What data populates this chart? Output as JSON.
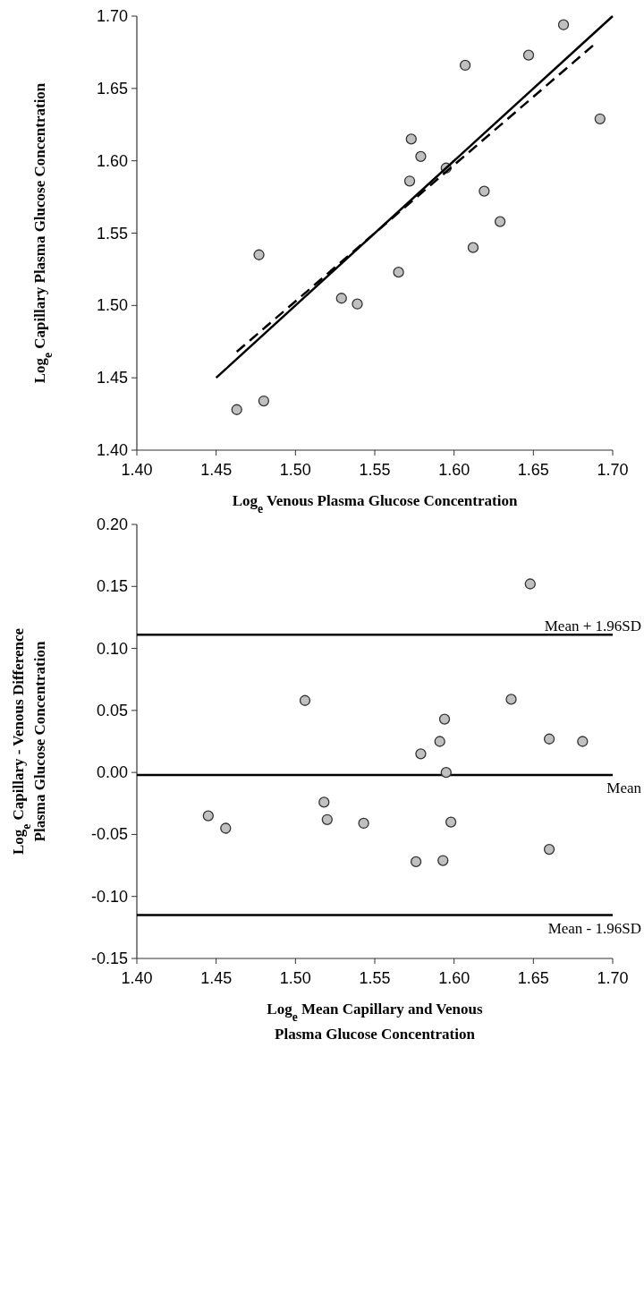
{
  "chart_data": [
    {
      "type": "scatter",
      "xlabel": "Log$_{e}$ Venous Plasma Glucose Concentration",
      "ylabel": "Log$_{e}$ Capillary Plasma Glucose Concentration",
      "xlim": [
        1.4,
        1.7
      ],
      "ylim": [
        1.4,
        1.7
      ],
      "xticks": [
        {
          "value": 1.4,
          "label": "1.40"
        },
        {
          "value": 1.45,
          "label": "1.45"
        },
        {
          "value": 1.5,
          "label": "1.50"
        },
        {
          "value": 1.55,
          "label": "1.55"
        },
        {
          "value": 1.6,
          "label": "1.60"
        },
        {
          "value": 1.65,
          "label": "1.65"
        },
        {
          "value": 1.7,
          "label": "1.70"
        }
      ],
      "yticks": [
        {
          "value": 1.4,
          "label": "1.40"
        },
        {
          "value": 1.45,
          "label": "1.45"
        },
        {
          "value": 1.5,
          "label": "1.50"
        },
        {
          "value": 1.55,
          "label": "1.55"
        },
        {
          "value": 1.6,
          "label": "1.60"
        },
        {
          "value": 1.65,
          "label": "1.65"
        },
        {
          "value": 1.7,
          "label": "1.70"
        }
      ],
      "series": [
        {
          "color": "#c0c0c0",
          "marker": "circle",
          "x": [
            1.463,
            1.48,
            1.477,
            1.529,
            1.539,
            1.565,
            1.572,
            1.573,
            1.579,
            1.595,
            1.607,
            1.612,
            1.619,
            1.629,
            1.647,
            1.669,
            1.692
          ],
          "values": [
            1.428,
            1.434,
            1.535,
            1.505,
            1.501,
            1.523,
            1.586,
            1.615,
            1.603,
            1.595,
            1.666,
            1.54,
            1.579,
            1.558,
            1.673,
            1.694,
            1.629
          ]
        },
        {
          "type": "line",
          "color": "#000000",
          "line_style": "solid",
          "x": [
            1.45,
            1.7
          ],
          "values": [
            1.45,
            1.7
          ]
        },
        {
          "type": "line",
          "color": "#000000",
          "line_style": "dashed",
          "x": [
            1.463,
            1.689
          ],
          "values": [
            1.468,
            1.681
          ]
        }
      ]
    },
    {
      "type": "scatter",
      "xlabel": "Log$_{e}$ Mean Capillary and Venous\nPlasma Glucose Concentration",
      "ylabel": "Log$_{e}$ Capillary - Venous Difference\nPlasma Glucose Concentration",
      "xlim": [
        1.4,
        1.7
      ],
      "ylim": [
        -0.15,
        0.2
      ],
      "xticks": [
        {
          "value": 1.4,
          "label": "1.40"
        },
        {
          "value": 1.45,
          "label": "1.45"
        },
        {
          "value": 1.5,
          "label": "1.50"
        },
        {
          "value": 1.55,
          "label": "1.55"
        },
        {
          "value": 1.6,
          "label": "1.60"
        },
        {
          "value": 1.65,
          "label": "1.65"
        },
        {
          "value": 1.7,
          "label": "1.70"
        }
      ],
      "yticks": [
        {
          "value": -0.15,
          "label": "-0.15"
        },
        {
          "value": -0.1,
          "label": "-0.10"
        },
        {
          "value": -0.05,
          "label": "-0.05"
        },
        {
          "value": 0,
          "label": "0.00"
        },
        {
          "value": 0.05,
          "label": "0.05"
        },
        {
          "value": 0.1,
          "label": "0.10"
        },
        {
          "value": 0.15,
          "label": "0.15"
        },
        {
          "value": 0.2,
          "label": "0.20"
        }
      ],
      "marker": "circle",
      "series": [
        {
          "color": "#c0c0c0",
          "x": [
            1.445,
            1.456,
            1.506,
            1.518,
            1.52,
            1.543,
            1.576,
            1.579,
            1.591,
            1.593,
            1.594,
            1.595,
            1.598,
            1.636,
            1.648,
            1.66,
            1.66,
            1.681
          ],
          "values": [
            -0.035,
            -0.045,
            0.058,
            -0.024,
            -0.038,
            -0.041,
            -0.072,
            0.015,
            0.025,
            -0.071,
            0.043,
            0,
            -0.04,
            0.059,
            0.152,
            0.027,
            -0.062,
            0.025
          ]
        }
      ],
      "ref_lines": [
        {
          "axis": "y",
          "value": 0.111,
          "label": "Mean + 1.96SD",
          "color": "#000000"
        },
        {
          "axis": "y",
          "value": -0.002,
          "label": "Mean",
          "color": "#000000"
        },
        {
          "axis": "y",
          "value": -0.115,
          "label": "Mean - 1.96SD",
          "color": "#000000"
        }
      ]
    }
  ]
}
